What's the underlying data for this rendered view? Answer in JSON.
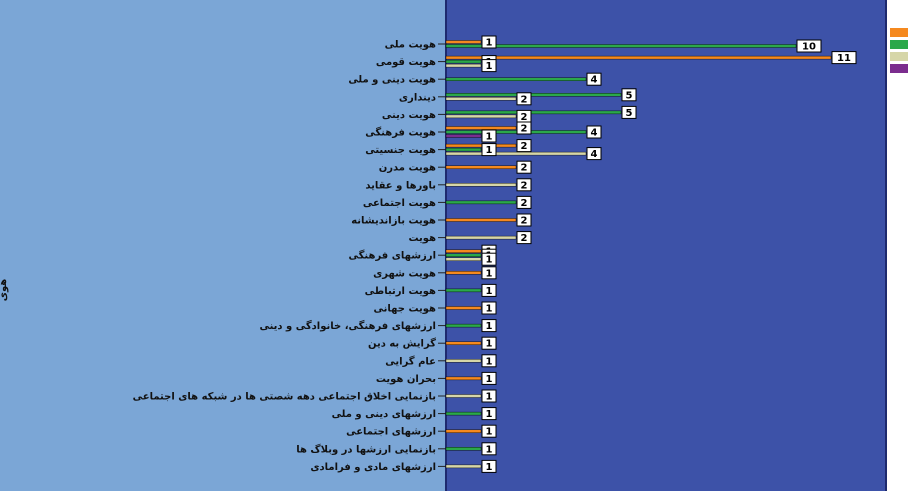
{
  "chart_data": {
    "type": "bar",
    "orientation": "horizontal",
    "ylabel": "هوی",
    "colors": {
      "label_pane": "#7ba6d6",
      "plot_area": "#3d52a8",
      "frame": "#1e2a6e",
      "orange": "#f5891f",
      "green": "#2ba84a",
      "beige": "#d6d6a8",
      "purple": "#7b2d8e",
      "value_box_fill": "#ffffff",
      "value_box_stroke": "#000000"
    },
    "legend": {
      "placement": "right",
      "swatches": [
        "#f5891f",
        "#2ba84a",
        "#d6d6a8",
        "#7b2d8e"
      ]
    },
    "categories": [
      "هویت ملی",
      "هویت قومی",
      "هویت دینی و ملی",
      "دینداری",
      "هویت دینی",
      "هویت فرهنگی",
      "هویت جنسیتی",
      "هویت مدرن",
      "باورها و عقاید",
      "هویت اجتماعی",
      "هویت بازاندیشانه",
      "هویت",
      "ارزشهای فرهنگی",
      "هویت شهری",
      "هویت ارتباطی",
      "هویت جهانی",
      "ارزشهای فرهنگی، خانوادگی و دینی",
      "گرایش به دین",
      "عام گرایی",
      "بحران هویت",
      "بازنمایی اخلاق اجتماعی دهه شصتی ها در شبکه های اجتماعی",
      "ارزشهای دینی و ملی",
      "ارزشهای اجتماعی",
      "بازنمایی ارزشها در وبلاگ ها",
      "ارزشهای مادی و فرامادی"
    ],
    "series": [
      {
        "color": "orange",
        "values": [
          1,
          11,
          null,
          null,
          null,
          2,
          2,
          2,
          null,
          null,
          2,
          null,
          1,
          1,
          null,
          1,
          null,
          1,
          null,
          1,
          null,
          null,
          1,
          null,
          null
        ]
      },
      {
        "color": "green",
        "values": [
          10,
          1,
          4,
          5,
          5,
          4,
          1,
          null,
          null,
          2,
          null,
          null,
          1,
          null,
          1,
          null,
          1,
          null,
          null,
          null,
          null,
          1,
          null,
          1,
          null
        ]
      },
      {
        "color": "beige",
        "values": [
          null,
          1,
          null,
          2,
          2,
          null,
          4,
          null,
          2,
          null,
          null,
          2,
          1,
          null,
          null,
          null,
          null,
          null,
          1,
          null,
          1,
          null,
          null,
          null,
          1
        ]
      },
      {
        "color": "purple",
        "values": [
          null,
          null,
          null,
          null,
          null,
          1,
          null,
          null,
          null,
          null,
          null,
          null,
          null,
          null,
          null,
          null,
          null,
          null,
          null,
          null,
          null,
          null,
          null,
          null,
          null
        ]
      }
    ]
  }
}
